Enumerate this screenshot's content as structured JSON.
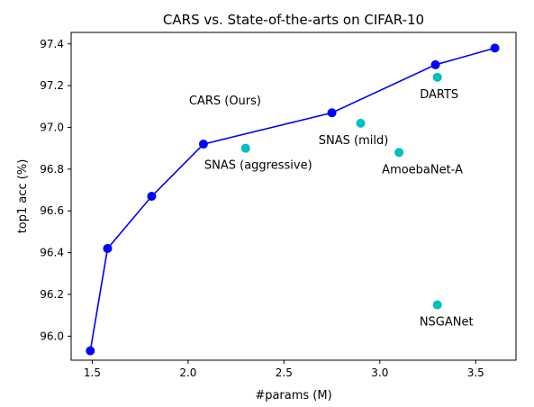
{
  "chart_data": {
    "type": "scatter",
    "title": "CARS vs. State-of-the-arts on CIFAR-10",
    "xlabel": "#params (M)",
    "ylabel": "top1 acc (%)",
    "xlim": [
      1.39,
      3.71
    ],
    "ylim": [
      95.885,
      97.455
    ],
    "grid": false,
    "x_ticks": [
      1.5,
      2.0,
      2.5,
      3.0,
      3.5
    ],
    "x_tick_labels": [
      "1.5",
      "2.0",
      "2.5",
      "3.0",
      "3.5"
    ],
    "y_ticks": [
      96.0,
      96.2,
      96.4,
      96.6,
      96.8,
      97.0,
      97.2,
      97.4
    ],
    "y_tick_labels": [
      "96.0",
      "96.2",
      "96.4",
      "96.6",
      "96.8",
      "97.0",
      "97.2",
      "97.4"
    ],
    "series": [
      {
        "label": "CARS (Ours)",
        "style": "line+markers",
        "color": "#0000ff",
        "x": [
          1.49,
          1.58,
          1.81,
          2.08,
          2.75,
          3.29,
          3.6
        ],
        "y": [
          95.93,
          96.42,
          96.67,
          96.92,
          97.07,
          97.3,
          97.38
        ]
      },
      {
        "style": "markers",
        "color": "#00bfbf",
        "points": [
          {
            "label": "SNAS (aggressive)",
            "x": 2.3,
            "y": 96.9
          },
          {
            "label": "SNAS (mild)",
            "x": 2.9,
            "y": 97.02
          },
          {
            "label": "AmoebaNet-A",
            "x": 3.1,
            "y": 96.88
          },
          {
            "label": "DARTS",
            "x": 3.3,
            "y": 97.24
          },
          {
            "label": "NSGANet",
            "x": 3.3,
            "y": 96.15
          }
        ]
      }
    ]
  }
}
